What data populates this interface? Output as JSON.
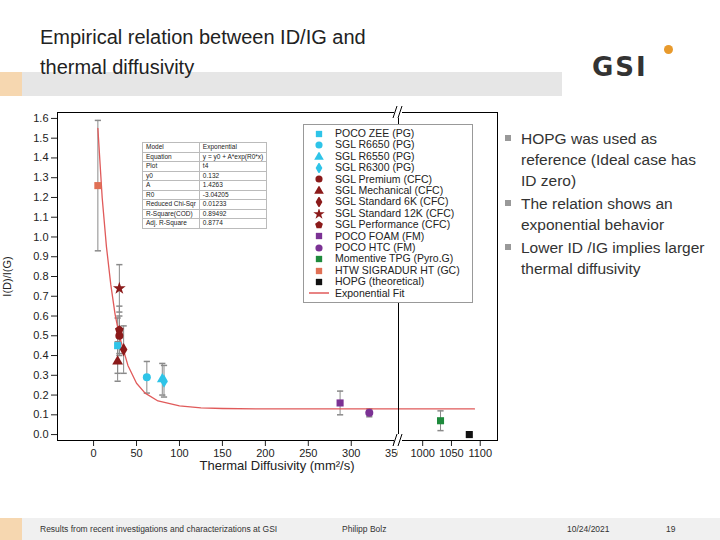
{
  "slide": {
    "title": "Empirical relation between ID/IG and thermal diffusivity",
    "logo": "GSI",
    "bullets": [
      "HOPG was used as reference (Ideal case has ID zero)",
      "The relation shows an exponential behavior",
      "Lower ID /IG implies larger thermal diffusivity"
    ],
    "footer": {
      "text": "Results from recent investigations and characterizations at GSI",
      "author": "Philipp Bolz",
      "date": "10/24/2021",
      "page": 19
    }
  },
  "fit_table": {
    "rows": [
      [
        "Model",
        "Exponential"
      ],
      [
        "Equation",
        "y = y0 + A*exp(R0*x)"
      ],
      [
        "Plot",
        "t4"
      ],
      [
        "y0",
        "0.132"
      ],
      [
        "A",
        "1.4263"
      ],
      [
        "R0",
        "-3.04205"
      ],
      [
        "Reduced Chi-Sqr",
        "0.01233"
      ],
      [
        "R-Square(COD)",
        "0.89492"
      ],
      [
        "Adj. R-Square",
        "0.8774"
      ]
    ]
  },
  "chart_data": {
    "type": "scatter",
    "x_label": "Thermal Diffusivity (mm²/s)",
    "y_label": "I(D)/I(G)",
    "xlim": [
      -42,
      1130
    ],
    "x_break": [
      355,
      958
    ],
    "xticks": [
      0,
      50,
      100,
      150,
      200,
      250,
      300,
      350,
      1000,
      1050,
      1100
    ],
    "ylim": [
      -0.03,
      1.63
    ],
    "yticks": [
      {
        "value": 0,
        "label": "0.0"
      },
      0.1,
      0.2,
      0.3,
      0.4,
      0.5,
      0.6,
      0.7,
      0.8,
      0.9,
      {
        "value": 1,
        "label": "1.0"
      },
      1.1,
      1.2,
      1.3,
      1.4,
      1.5,
      1.6
    ],
    "grid": false,
    "legend": "upper right",
    "series": [
      {
        "name": "POCO ZEE (PG)",
        "color": "#2ec4e8",
        "marker": "square",
        "x": [
          28
        ],
        "values": [
          0.45
        ],
        "errors": [
          0.14
        ]
      },
      {
        "name": "SGL R6650 (PG)",
        "color": "#2ec4e8",
        "marker": "circle",
        "x": [
          62
        ],
        "values": [
          0.29
        ],
        "errors": [
          0.08
        ]
      },
      {
        "name": "SGL R6550 (PG)",
        "color": "#2ec4e8",
        "marker": "triangle",
        "x": [
          80
        ],
        "values": [
          0.28
        ],
        "errors": [
          0.08
        ]
      },
      {
        "name": "SGL R6300 (PG)",
        "color": "#2ec4e8",
        "marker": "diamond",
        "x": [
          82
        ],
        "values": [
          0.27
        ],
        "errors": [
          0.08
        ]
      },
      {
        "name": "SGL Premium (CFC)",
        "color": "#8b1a1a",
        "marker": "circle",
        "x": [
          30
        ],
        "values": [
          0.5
        ],
        "errors": [
          0.1
        ]
      },
      {
        "name": "SGL Mechanical (CFC)",
        "color": "#8b1a1a",
        "marker": "triangle",
        "x": [
          28
        ],
        "values": [
          0.37
        ],
        "errors": [
          0.1
        ]
      },
      {
        "name": "SGL Standard 6K (CFC)",
        "color": "#8b1a1a",
        "marker": "diamond",
        "x": [
          35
        ],
        "values": [
          0.43
        ],
        "errors": [
          0.12
        ]
      },
      {
        "name": "SGL Standard 12K (CFC)",
        "color": "#8b1a1a",
        "marker": "star",
        "x": [
          30
        ],
        "values": [
          0.74
        ],
        "errors": [
          0.12
        ]
      },
      {
        "name": "SGL Performance (CFC)",
        "color": "#8b1a1a",
        "marker": "pentagon",
        "x": [
          30
        ],
        "values": [
          0.53
        ],
        "errors": [
          0.12
        ]
      },
      {
        "name": "POCO FOAM (FM)",
        "color": "#7b3294",
        "marker": "square",
        "x": [
          287
        ],
        "values": [
          0.16
        ],
        "errors": [
          0.06
        ]
      },
      {
        "name": "POCO HTC (FM)",
        "color": "#7b3294",
        "marker": "circle",
        "x": [
          321
        ],
        "values": [
          0.11
        ],
        "errors": [
          0.02
        ]
      },
      {
        "name": "Momentive TPG (Pyro.G)",
        "color": "#1e8a3c",
        "marker": "square",
        "x": [
          1031
        ],
        "values": [
          0.07
        ],
        "errors": [
          0.05
        ]
      },
      {
        "name": "HTW SIGRADUR HT (GC)",
        "color": "#e07055",
        "marker": "square",
        "x": [
          5
        ],
        "values": [
          1.26
        ],
        "errors": [
          0.33
        ]
      },
      {
        "name": "HOPG (theoretical)",
        "color": "#111111",
        "marker": "square",
        "x": [
          1081
        ],
        "values": [
          0
        ]
      },
      {
        "name": "Exponential Fit",
        "type": "line",
        "color": "#e05a5a",
        "line_style": "solid",
        "x": [
          5,
          10,
          15,
          20,
          25,
          30,
          40,
          50,
          60,
          75,
          100,
          125,
          150,
          200,
          300,
          350,
          1000,
          1050,
          1090
        ],
        "values": [
          1.55,
          1.2,
          0.95,
          0.76,
          0.61,
          0.5,
          0.35,
          0.26,
          0.21,
          0.17,
          0.145,
          0.135,
          0.132,
          0.13,
          0.13,
          0.13,
          0.13,
          0.13,
          0.13
        ]
      }
    ]
  }
}
